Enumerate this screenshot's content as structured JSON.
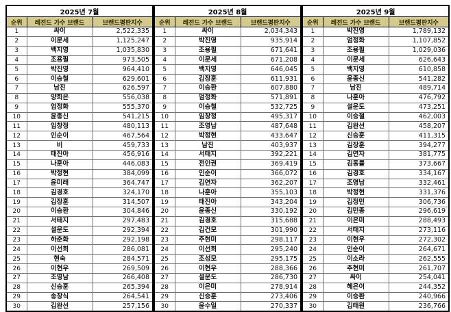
{
  "colors": {
    "header_bg": "#d5ca8e",
    "header_text": "#2b2500",
    "grid_line": "#6e6e6e",
    "outer_border": "#000000",
    "body_bg": "#ffffff",
    "data_text": "#111111"
  },
  "tables": [
    {
      "month": "2025년 7월",
      "headers": [
        "순위",
        "레전드 가수 브랜드",
        "브랜드평판지수"
      ],
      "rows": [
        [
          "1",
          "싸이",
          "2,522,335"
        ],
        [
          "2",
          "이문세",
          "1,125,247"
        ],
        [
          "3",
          "백지영",
          "1,035,830"
        ],
        [
          "4",
          "조용필",
          "973,505"
        ],
        [
          "5",
          "박진영",
          "964,410"
        ],
        [
          "6",
          "이승철",
          "629,601"
        ],
        [
          "7",
          "남진",
          "626,597"
        ],
        [
          "8",
          "양희은",
          "556,038"
        ],
        [
          "9",
          "엄정화",
          "555,370"
        ],
        [
          "10",
          "윤종신",
          "541,215"
        ],
        [
          "11",
          "임창정",
          "480,113"
        ],
        [
          "12",
          "인순이",
          "467,564"
        ],
        [
          "13",
          "비",
          "459,733"
        ],
        [
          "14",
          "태진아",
          "456,916"
        ],
        [
          "15",
          "나훈아",
          "446,083"
        ],
        [
          "16",
          "박정현",
          "384,099"
        ],
        [
          "17",
          "윤미래",
          "364,747"
        ],
        [
          "18",
          "김경호",
          "324,170"
        ],
        [
          "19",
          "김장훈",
          "314,507"
        ],
        [
          "20",
          "이승환",
          "304,846"
        ],
        [
          "21",
          "서태지",
          "297,483"
        ],
        [
          "22",
          "설운도",
          "292,394"
        ],
        [
          "23",
          "하춘화",
          "292,198"
        ],
        [
          "24",
          "이선희",
          "286,081"
        ],
        [
          "25",
          "현숙",
          "284,571"
        ],
        [
          "26",
          "이현우",
          "269,509"
        ],
        [
          "27",
          "조영남",
          "266,408"
        ],
        [
          "28",
          "신승훈",
          "265,394"
        ],
        [
          "29",
          "송창식",
          "264,541"
        ],
        [
          "30",
          "김완선",
          "257,156"
        ]
      ]
    },
    {
      "month": "2025년 8월",
      "headers": [
        "순위",
        "레전드 가수 브랜드",
        "브랜드평판지수"
      ],
      "rows": [
        [
          "1",
          "싸이",
          "2,034,343"
        ],
        [
          "2",
          "박진영",
          "935,914"
        ],
        [
          "3",
          "조용필",
          "671,641"
        ],
        [
          "4",
          "이문세",
          "671,208"
        ],
        [
          "5",
          "백지영",
          "646,045"
        ],
        [
          "6",
          "김장훈",
          "611,931"
        ],
        [
          "7",
          "이승환",
          "607,880"
        ],
        [
          "8",
          "엄정화",
          "571,891"
        ],
        [
          "9",
          "이승철",
          "532,725"
        ],
        [
          "10",
          "임창정",
          "495,317"
        ],
        [
          "11",
          "조영남",
          "487,648"
        ],
        [
          "12",
          "박정현",
          "433,647"
        ],
        [
          "13",
          "남진",
          "403,937"
        ],
        [
          "14",
          "서태지",
          "392,221"
        ],
        [
          "15",
          "전인권",
          "369,419"
        ],
        [
          "16",
          "인순이",
          "366,072"
        ],
        [
          "17",
          "김연자",
          "362,207"
        ],
        [
          "18",
          "나훈아",
          "355,103"
        ],
        [
          "19",
          "태진아",
          "343,204"
        ],
        [
          "20",
          "윤종신",
          "330,192"
        ],
        [
          "21",
          "김경호",
          "315,688"
        ],
        [
          "22",
          "김건모",
          "301,990"
        ],
        [
          "23",
          "주현미",
          "298,117"
        ],
        [
          "24",
          "이선희",
          "295,240"
        ],
        [
          "25",
          "조성모",
          "295,175"
        ],
        [
          "26",
          "이현우",
          "288,366"
        ],
        [
          "27",
          "설운도",
          "286,730"
        ],
        [
          "28",
          "이은미",
          "278,914"
        ],
        [
          "29",
          "신승훈",
          "273,406"
        ],
        [
          "30",
          "윤수일",
          "270,337"
        ]
      ]
    },
    {
      "month": "2025년 9월",
      "headers": [
        "순위",
        "레전드 가수 브랜드",
        "브랜드평판지수"
      ],
      "rows": [
        [
          "1",
          "박진영",
          "1,789,132"
        ],
        [
          "2",
          "엄정화",
          "1,107,852"
        ],
        [
          "3",
          "조용필",
          "1,029,036"
        ],
        [
          "4",
          "이문세",
          "626,643"
        ],
        [
          "5",
          "백지영",
          "610,858"
        ],
        [
          "6",
          "윤종신",
          "541,282"
        ],
        [
          "7",
          "남진",
          "489,714"
        ],
        [
          "8",
          "나훈아",
          "476,792"
        ],
        [
          "9",
          "설운도",
          "473,251"
        ],
        [
          "10",
          "이승철",
          "462,003"
        ],
        [
          "11",
          "김완선",
          "458,207"
        ],
        [
          "12",
          "신승훈",
          "411,315"
        ],
        [
          "13",
          "김장훈",
          "394,277"
        ],
        [
          "14",
          "김연자",
          "381,775"
        ],
        [
          "15",
          "김동률",
          "373,667"
        ],
        [
          "16",
          "김경호",
          "334,167"
        ],
        [
          "17",
          "조영남",
          "332,461"
        ],
        [
          "18",
          "박정현",
          "331,376"
        ],
        [
          "19",
          "김정민",
          "306,736"
        ],
        [
          "20",
          "김민종",
          "296,619"
        ],
        [
          "21",
          "이은미",
          "288,493"
        ],
        [
          "22",
          "서태지",
          "273,116"
        ],
        [
          "23",
          "이현우",
          "272,302"
        ],
        [
          "24",
          "인순이",
          "264,671"
        ],
        [
          "25",
          "이소라",
          "262,555"
        ],
        [
          "26",
          "주현미",
          "261,707"
        ],
        [
          "27",
          "싸이",
          "254,041"
        ],
        [
          "28",
          "혜은이",
          "244,352"
        ],
        [
          "29",
          "이승환",
          "240,966"
        ],
        [
          "30",
          "김태원",
          "236,766"
        ]
      ]
    }
  ]
}
